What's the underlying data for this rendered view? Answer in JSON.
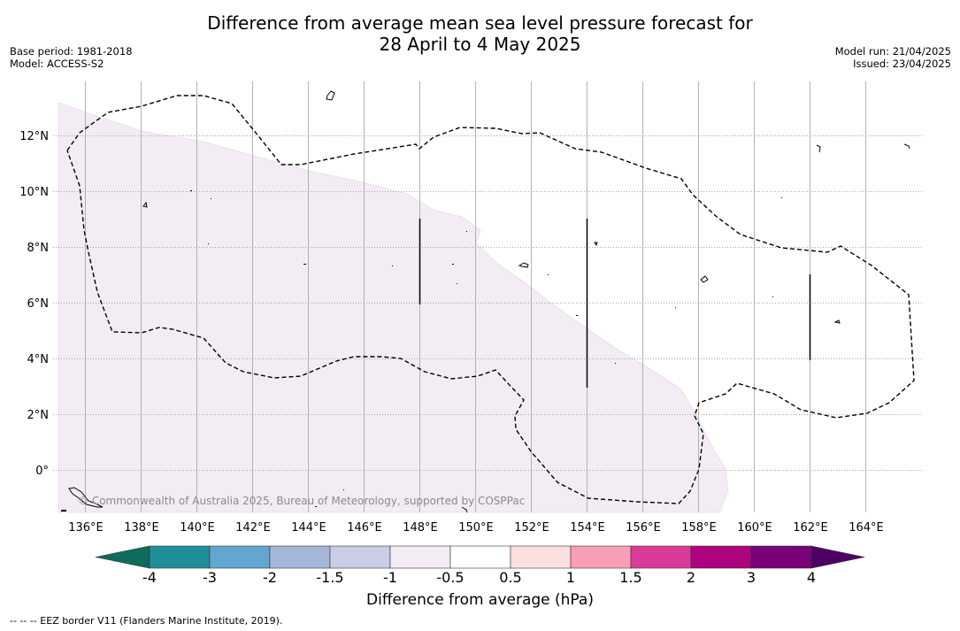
{
  "title": {
    "line1": "Difference from average mean sea level pressure forecast for",
    "line2": "28 April to 4 May 2025"
  },
  "meta_left": {
    "base_period": "Base period: 1981-2018",
    "model": "Model: ACCESS-S2"
  },
  "meta_right": {
    "model_run": "Model run: 21/04/2025",
    "issued": "Issued: 23/04/2025"
  },
  "map": {
    "lon_ticks": [
      "136°E",
      "138°E",
      "140°E",
      "142°E",
      "144°E",
      "146°E",
      "148°E",
      "150°E",
      "152°E",
      "154°E",
      "156°E",
      "158°E",
      "160°E",
      "162°E",
      "164°E"
    ],
    "lat_ticks": [
      "12°N",
      "10°N",
      "8°N",
      "6°N",
      "4°N",
      "2°N",
      "0°"
    ],
    "lon_range": [
      135.0,
      166.0
    ],
    "lat_range": [
      -1.5,
      14.0
    ],
    "gridlines": true,
    "shaded_category": "-1 to -0.5",
    "copyright": "© Commonwealth of Australia 2025, Bureau of Meteorology, supported by COSPPac"
  },
  "colorbar": {
    "labels": [
      "-4",
      "-3",
      "-2",
      "-1.5",
      "-1",
      "-0.5",
      "0.5",
      "1",
      "1.5",
      "2",
      "3",
      "4"
    ],
    "colors": [
      "#1e8f98",
      "#62a6d1",
      "#a5b7d9",
      "#cacde6",
      "#f3ecf5",
      "#ffffff",
      "#fde0de",
      "#f99fb4",
      "#db3b98",
      "#ae037e",
      "#7a0178"
    ],
    "under_color": "#0f6b5c",
    "over_color": "#4c0065",
    "title": "Difference from average (hPa)"
  },
  "footnote": "--  --  -- EEZ border V11 (Flanders Marine Institute, 2019)."
}
